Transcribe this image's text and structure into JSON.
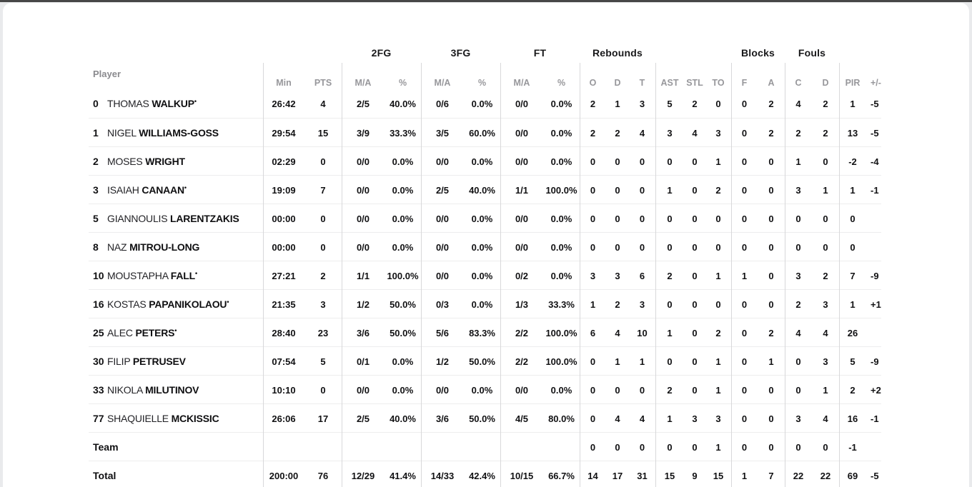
{
  "page": {
    "top_bar_color": "#474747",
    "card_background": "#ffffff"
  },
  "table": {
    "groups": {
      "fg2": "2FG",
      "fg3": "3FG",
      "ft": "FT",
      "rebounds": "Rebounds",
      "blocks": "Blocks",
      "fouls": "Fouls"
    },
    "columns": {
      "player": "Player",
      "min": "Min",
      "pts": "PTS",
      "ma": "M/A",
      "pct": "%",
      "o": "O",
      "d": "D",
      "t": "T",
      "ast": "AST",
      "stl": "STL",
      "to": "TO",
      "f": "F",
      "a": "A",
      "c": "C",
      "d2": "D",
      "pir": "PIR",
      "pm": "+/-"
    },
    "players": [
      {
        "number": "0",
        "first": "THOMAS",
        "last": "WALKUP",
        "starter": true,
        "min": "26:42",
        "pts": "4",
        "fg2_ma": "2/5",
        "fg2_pct": "40.0%",
        "fg3_ma": "0/6",
        "fg3_pct": "0.0%",
        "ft_ma": "0/0",
        "ft_pct": "0.0%",
        "reb_o": "2",
        "reb_d": "1",
        "reb_t": "3",
        "ast": "5",
        "stl": "2",
        "to": "0",
        "blk_f": "0",
        "blk_a": "2",
        "foul_c": "4",
        "foul_d": "2",
        "pir": "1",
        "pm": "-5"
      },
      {
        "number": "1",
        "first": "NIGEL",
        "last": "WILLIAMS-GOSS",
        "starter": false,
        "min": "29:54",
        "pts": "15",
        "fg2_ma": "3/9",
        "fg2_pct": "33.3%",
        "fg3_ma": "3/5",
        "fg3_pct": "60.0%",
        "ft_ma": "0/0",
        "ft_pct": "0.0%",
        "reb_o": "2",
        "reb_d": "2",
        "reb_t": "4",
        "ast": "3",
        "stl": "4",
        "to": "3",
        "blk_f": "0",
        "blk_a": "2",
        "foul_c": "2",
        "foul_d": "2",
        "pir": "13",
        "pm": "-5"
      },
      {
        "number": "2",
        "first": "MOSES",
        "last": "WRIGHT",
        "starter": false,
        "min": "02:29",
        "pts": "0",
        "fg2_ma": "0/0",
        "fg2_pct": "0.0%",
        "fg3_ma": "0/0",
        "fg3_pct": "0.0%",
        "ft_ma": "0/0",
        "ft_pct": "0.0%",
        "reb_o": "0",
        "reb_d": "0",
        "reb_t": "0",
        "ast": "0",
        "stl": "0",
        "to": "1",
        "blk_f": "0",
        "blk_a": "0",
        "foul_c": "1",
        "foul_d": "0",
        "pir": "-2",
        "pm": "-4"
      },
      {
        "number": "3",
        "first": "ISAIAH",
        "last": "CANAAN",
        "starter": true,
        "min": "19:09",
        "pts": "7",
        "fg2_ma": "0/0",
        "fg2_pct": "0.0%",
        "fg3_ma": "2/5",
        "fg3_pct": "40.0%",
        "ft_ma": "1/1",
        "ft_pct": "100.0%",
        "reb_o": "0",
        "reb_d": "0",
        "reb_t": "0",
        "ast": "1",
        "stl": "0",
        "to": "2",
        "blk_f": "0",
        "blk_a": "0",
        "foul_c": "3",
        "foul_d": "1",
        "pir": "1",
        "pm": "-1"
      },
      {
        "number": "5",
        "first": "GIANNOULIS",
        "last": "LARENTZAKIS",
        "starter": false,
        "min": "00:00",
        "pts": "0",
        "fg2_ma": "0/0",
        "fg2_pct": "0.0%",
        "fg3_ma": "0/0",
        "fg3_pct": "0.0%",
        "ft_ma": "0/0",
        "ft_pct": "0.0%",
        "reb_o": "0",
        "reb_d": "0",
        "reb_t": "0",
        "ast": "0",
        "stl": "0",
        "to": "0",
        "blk_f": "0",
        "blk_a": "0",
        "foul_c": "0",
        "foul_d": "0",
        "pir": "0",
        "pm": ""
      },
      {
        "number": "8",
        "first": "NAZ",
        "last": "MITROU-LONG",
        "starter": false,
        "min": "00:00",
        "pts": "0",
        "fg2_ma": "0/0",
        "fg2_pct": "0.0%",
        "fg3_ma": "0/0",
        "fg3_pct": "0.0%",
        "ft_ma": "0/0",
        "ft_pct": "0.0%",
        "reb_o": "0",
        "reb_d": "0",
        "reb_t": "0",
        "ast": "0",
        "stl": "0",
        "to": "0",
        "blk_f": "0",
        "blk_a": "0",
        "foul_c": "0",
        "foul_d": "0",
        "pir": "0",
        "pm": ""
      },
      {
        "number": "10",
        "first": "MOUSTAPHA",
        "last": "FALL",
        "starter": true,
        "min": "27:21",
        "pts": "2",
        "fg2_ma": "1/1",
        "fg2_pct": "100.0%",
        "fg3_ma": "0/0",
        "fg3_pct": "0.0%",
        "ft_ma": "0/2",
        "ft_pct": "0.0%",
        "reb_o": "3",
        "reb_d": "3",
        "reb_t": "6",
        "ast": "2",
        "stl": "0",
        "to": "1",
        "blk_f": "1",
        "blk_a": "0",
        "foul_c": "3",
        "foul_d": "2",
        "pir": "7",
        "pm": "-9"
      },
      {
        "number": "16",
        "first": "KOSTAS",
        "last": "PAPANIKOLAOU",
        "starter": true,
        "min": "21:35",
        "pts": "3",
        "fg2_ma": "1/2",
        "fg2_pct": "50.0%",
        "fg3_ma": "0/3",
        "fg3_pct": "0.0%",
        "ft_ma": "1/3",
        "ft_pct": "33.3%",
        "reb_o": "1",
        "reb_d": "2",
        "reb_t": "3",
        "ast": "0",
        "stl": "0",
        "to": "0",
        "blk_f": "0",
        "blk_a": "0",
        "foul_c": "2",
        "foul_d": "3",
        "pir": "1",
        "pm": "+1"
      },
      {
        "number": "25",
        "first": "ALEC",
        "last": "PETERS",
        "starter": true,
        "min": "28:40",
        "pts": "23",
        "fg2_ma": "3/6",
        "fg2_pct": "50.0%",
        "fg3_ma": "5/6",
        "fg3_pct": "83.3%",
        "ft_ma": "2/2",
        "ft_pct": "100.0%",
        "reb_o": "6",
        "reb_d": "4",
        "reb_t": "10",
        "ast": "1",
        "stl": "0",
        "to": "2",
        "blk_f": "0",
        "blk_a": "2",
        "foul_c": "4",
        "foul_d": "4",
        "pir": "26",
        "pm": ""
      },
      {
        "number": "30",
        "first": "FILIP",
        "last": "PETRUSEV",
        "starter": false,
        "min": "07:54",
        "pts": "5",
        "fg2_ma": "0/1",
        "fg2_pct": "0.0%",
        "fg3_ma": "1/2",
        "fg3_pct": "50.0%",
        "ft_ma": "2/2",
        "ft_pct": "100.0%",
        "reb_o": "0",
        "reb_d": "1",
        "reb_t": "1",
        "ast": "0",
        "stl": "0",
        "to": "1",
        "blk_f": "0",
        "blk_a": "1",
        "foul_c": "0",
        "foul_d": "3",
        "pir": "5",
        "pm": "-9"
      },
      {
        "number": "33",
        "first": "NIKOLA",
        "last": "MILUTINOV",
        "starter": false,
        "min": "10:10",
        "pts": "0",
        "fg2_ma": "0/0",
        "fg2_pct": "0.0%",
        "fg3_ma": "0/0",
        "fg3_pct": "0.0%",
        "ft_ma": "0/0",
        "ft_pct": "0.0%",
        "reb_o": "0",
        "reb_d": "0",
        "reb_t": "0",
        "ast": "2",
        "stl": "0",
        "to": "1",
        "blk_f": "0",
        "blk_a": "0",
        "foul_c": "0",
        "foul_d": "1",
        "pir": "2",
        "pm": "+2"
      },
      {
        "number": "77",
        "first": "SHAQUIELLE",
        "last": "MCKISSIC",
        "starter": false,
        "min": "26:06",
        "pts": "17",
        "fg2_ma": "2/5",
        "fg2_pct": "40.0%",
        "fg3_ma": "3/6",
        "fg3_pct": "50.0%",
        "ft_ma": "4/5",
        "ft_pct": "80.0%",
        "reb_o": "0",
        "reb_d": "4",
        "reb_t": "4",
        "ast": "1",
        "stl": "3",
        "to": "3",
        "blk_f": "0",
        "blk_a": "0",
        "foul_c": "3",
        "foul_d": "4",
        "pir": "16",
        "pm": "-1"
      }
    ],
    "team_row": {
      "label": "Team",
      "min": "",
      "pts": "",
      "fg2_ma": "",
      "fg2_pct": "",
      "fg3_ma": "",
      "fg3_pct": "",
      "ft_ma": "",
      "ft_pct": "",
      "reb_o": "0",
      "reb_d": "0",
      "reb_t": "0",
      "ast": "0",
      "stl": "0",
      "to": "1",
      "blk_f": "0",
      "blk_a": "0",
      "foul_c": "0",
      "foul_d": "0",
      "pir": "-1",
      "pm": ""
    },
    "total_row": {
      "label": "Total",
      "min": "200:00",
      "pts": "76",
      "fg2_ma": "12/29",
      "fg2_pct": "41.4%",
      "fg3_ma": "14/33",
      "fg3_pct": "42.4%",
      "ft_ma": "10/15",
      "ft_pct": "66.7%",
      "reb_o": "14",
      "reb_d": "17",
      "reb_t": "31",
      "ast": "15",
      "stl": "9",
      "to": "15",
      "blk_f": "1",
      "blk_a": "7",
      "foul_c": "22",
      "foul_d": "22",
      "pir": "69",
      "pm": "-5"
    }
  }
}
